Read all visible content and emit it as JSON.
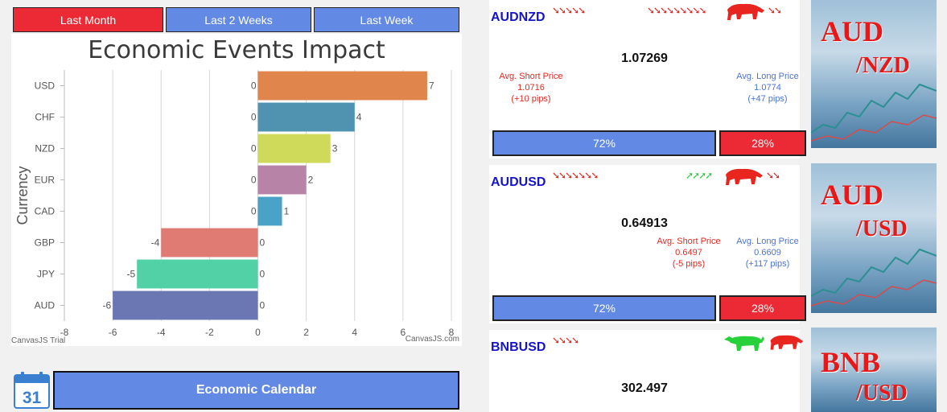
{
  "tabs": [
    {
      "label": "Last Month",
      "active": true
    },
    {
      "label": "Last 2 Weeks",
      "active": false
    },
    {
      "label": "Last Week",
      "active": false
    }
  ],
  "chart_data": {
    "type": "bar",
    "orientation": "horizontal",
    "title": "Economic Events Impact",
    "ylabel": "Currency",
    "xlabel": "",
    "categories": [
      "USD",
      "CHF",
      "NZD",
      "EUR",
      "CAD",
      "GBP",
      "JPY",
      "AUD"
    ],
    "values": [
      7,
      4,
      3,
      2,
      1,
      -4,
      -5,
      -6
    ],
    "zero_labels": [
      "0",
      "0",
      "0",
      "0",
      "0",
      "0",
      "0",
      "0"
    ],
    "colors": [
      "#e0854b",
      "#4f93b0",
      "#cfd95a",
      "#b784a7",
      "#4aa3c7",
      "#e07b74",
      "#52d1a6",
      "#6b77b3"
    ],
    "xlim": [
      -8,
      8
    ],
    "xticks": [
      -8,
      -6,
      -4,
      -2,
      0,
      2,
      4,
      6,
      8
    ],
    "grid": true,
    "watermark_left": "CanvasJS Trial",
    "watermark_right": "CanvasJS.com"
  },
  "calendar": {
    "day": "31",
    "button_label": "Economic Calendar"
  },
  "cards": [
    {
      "pair": "AUDNZD",
      "price": "1.07269",
      "short": {
        "label": "Avg. Short Price",
        "value": "1.0716",
        "pips": "(+10 pips)"
      },
      "long": {
        "label": "Avg. Long Price",
        "value": "1.0774",
        "pips": "(+47 pips)"
      },
      "long_pct": "72%",
      "short_pct": "28%",
      "thumb_top": "AUD",
      "thumb_bottom": "/NZD",
      "trend": "bear"
    },
    {
      "pair": "AUDUSD",
      "price": "0.64913",
      "short": {
        "label": "Avg. Short Price",
        "value": "0.6497",
        "pips": "(-5 pips)"
      },
      "long": {
        "label": "Avg. Long Price",
        "value": "0.6609",
        "pips": "(+117 pips)"
      },
      "long_pct": "72%",
      "short_pct": "28%",
      "thumb_top": "AUD",
      "thumb_bottom": "/USD",
      "trend": "bear"
    },
    {
      "pair": "BNBUSD",
      "price": "302.497",
      "thumb_top": "BNB",
      "thumb_bottom": "/USD",
      "trend": "mixed"
    }
  ],
  "colors": {
    "accent_blue": "#6289e4",
    "accent_red": "#ec2a35",
    "pair_blue": "#1515c8"
  }
}
